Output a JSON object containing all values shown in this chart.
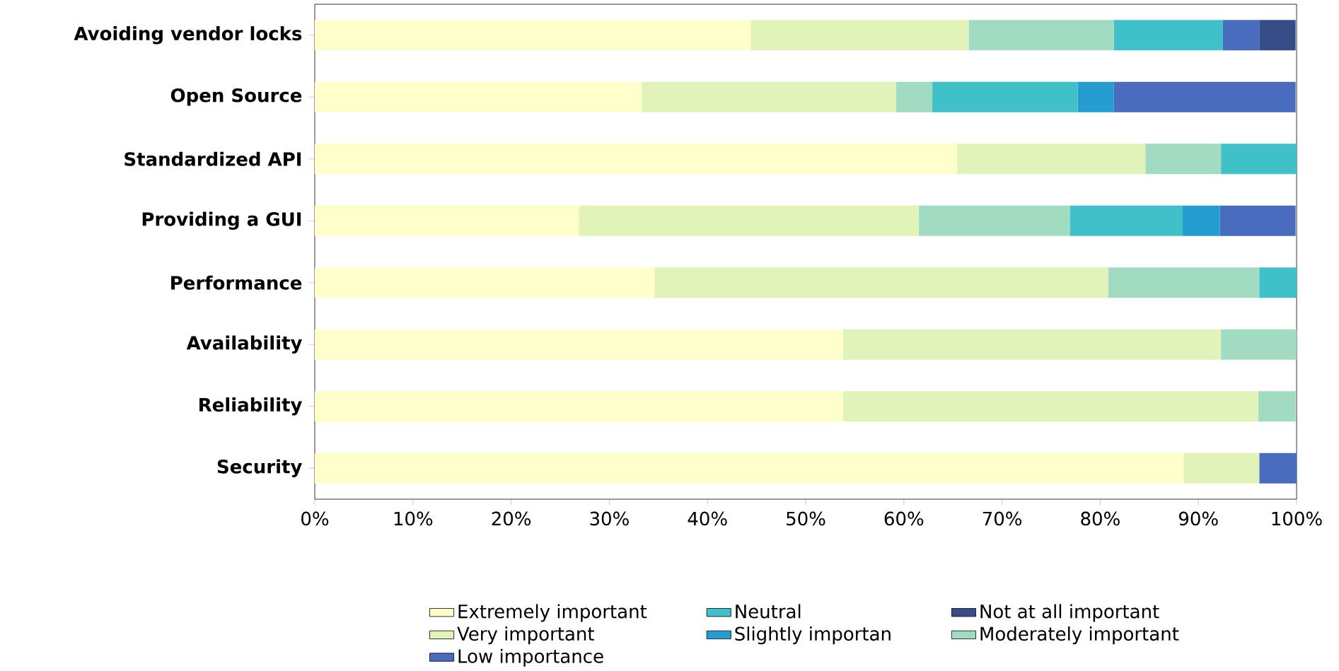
{
  "chart_data": {
    "type": "bar",
    "orientation": "horizontal",
    "stacked": true,
    "categories": [
      "Avoiding vendor locks",
      "Open Source",
      "Standardized API",
      "Providing a GUI",
      "Performance",
      "Availability",
      "Reliability",
      "Security"
    ],
    "series": [
      {
        "name": "Extremely important",
        "color": "#ffffcc",
        "values": [
          44.4,
          33.3,
          65.4,
          26.9,
          34.6,
          53.8,
          53.8,
          88.5
        ]
      },
      {
        "name": "Very important",
        "color": "#e1f3b8",
        "values": [
          22.2,
          25.9,
          19.2,
          34.6,
          46.2,
          38.5,
          42.3,
          7.7
        ]
      },
      {
        "name": "Moderately important",
        "color": "#a1dbc1",
        "values": [
          14.8,
          3.7,
          7.7,
          15.4,
          15.4,
          7.7,
          3.8,
          0
        ]
      },
      {
        "name": "Neutral",
        "color": "#40c0c9",
        "values": [
          11.1,
          14.8,
          7.7,
          11.5,
          3.8,
          0,
          0,
          0
        ]
      },
      {
        "name": "Slightly importan",
        "color": "#259dd0",
        "values": [
          0,
          3.7,
          0,
          3.8,
          0,
          0,
          0,
          0
        ]
      },
      {
        "name": "Low importance",
        "color": "#4a6cbf",
        "values": [
          3.7,
          18.5,
          0,
          7.7,
          0,
          0,
          0,
          3.8
        ]
      },
      {
        "name": "Not at all important",
        "color": "#364d88",
        "values": [
          3.7,
          0,
          0,
          0,
          0,
          0,
          0,
          0
        ]
      }
    ],
    "xlim": [
      0,
      100
    ],
    "xticks": [
      {
        "value": 0,
        "label": "0%"
      },
      {
        "value": 10,
        "label": "10%"
      },
      {
        "value": 20,
        "label": "20%"
      },
      {
        "value": 30,
        "label": "30%"
      },
      {
        "value": 40,
        "label": "40%"
      },
      {
        "value": 50,
        "label": "50%"
      },
      {
        "value": 60,
        "label": "60%"
      },
      {
        "value": 70,
        "label": "70%"
      },
      {
        "value": 80,
        "label": "80%"
      },
      {
        "value": 90,
        "label": "90%"
      },
      {
        "value": 100,
        "label": "100%"
      }
    ],
    "legend": "bottom"
  }
}
